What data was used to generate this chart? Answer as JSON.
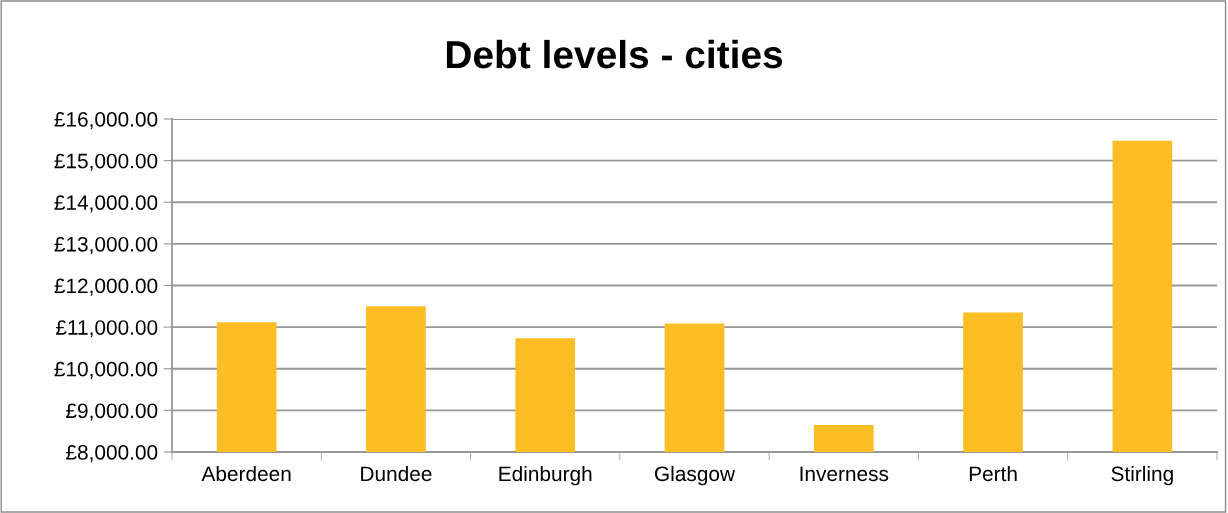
{
  "chart_data": {
    "type": "bar",
    "title": "Debt levels - cities",
    "categories": [
      "Aberdeen",
      "Dundee",
      "Edinburgh",
      "Glasgow",
      "Inverness",
      "Perth",
      "Stirling"
    ],
    "values": [
      11120,
      11500,
      10730,
      11090,
      8650,
      11350,
      15480
    ],
    "color": "#fdbd25",
    "ylim": [
      8000,
      16000
    ],
    "yticks": [
      {
        "value": 8000,
        "label": "£8,000.00"
      },
      {
        "value": 9000,
        "label": "£9,000.00"
      },
      {
        "value": 10000,
        "label": "£10,000.00"
      },
      {
        "value": 11000,
        "label": "£11,000.00"
      },
      {
        "value": 12000,
        "label": "£12,000.00"
      },
      {
        "value": 13000,
        "label": "£13,000.00"
      },
      {
        "value": 14000,
        "label": "£14,000.00"
      },
      {
        "value": 15000,
        "label": "£15,000.00"
      },
      {
        "value": 16000,
        "label": "£16,000.00"
      }
    ],
    "grid": "y",
    "legend": false
  }
}
